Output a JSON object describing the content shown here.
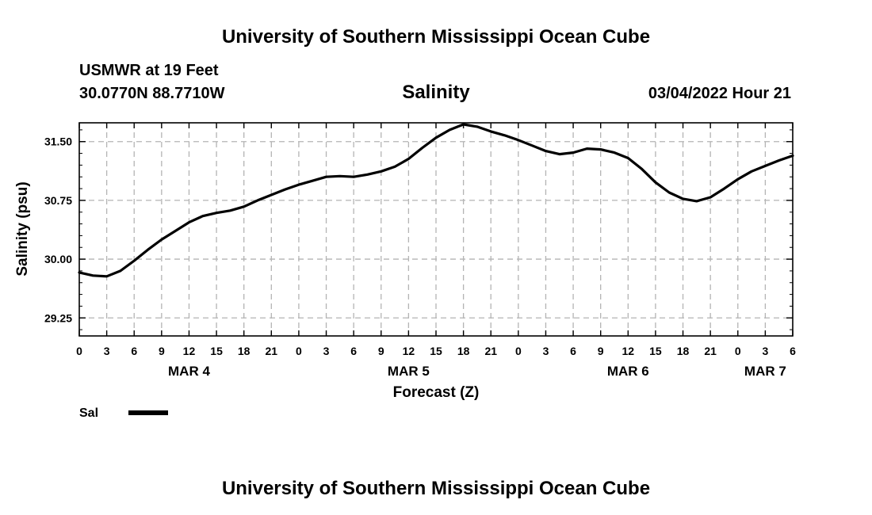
{
  "header": {
    "title_top": "University of Southern Mississippi Ocean Cube",
    "station": "USMWR at 19 Feet",
    "coords": "30.0770N  88.7710W",
    "datetime": "03/04/2022 Hour 21",
    "title_bottom": "University of Southern Mississippi Ocean Cube"
  },
  "colors": {
    "line": "#000000",
    "grid": "#b4b4b4",
    "background": "#ffffff"
  },
  "chart_data": {
    "type": "line",
    "title": "Salinity",
    "xlabel": "Forecast (Z)",
    "ylabel": "Salinity (psu)",
    "x_unit": "hours since 0Z MAR 4",
    "xlim": [
      0,
      78
    ],
    "ylim": [
      29.02,
      31.74
    ],
    "grid": true,
    "x_ticks": [
      0,
      3,
      6,
      9,
      12,
      15,
      18,
      21,
      24,
      27,
      30,
      33,
      36,
      39,
      42,
      45,
      48,
      51,
      54,
      57,
      60,
      63,
      66,
      69,
      72,
      75,
      78
    ],
    "x_tick_labels": [
      "0",
      "3",
      "6",
      "9",
      "12",
      "15",
      "18",
      "21",
      "0",
      "3",
      "6",
      "9",
      "12",
      "15",
      "18",
      "21",
      "0",
      "3",
      "6",
      "9",
      "12",
      "15",
      "18",
      "21",
      "0",
      "3",
      "6"
    ],
    "day_labels": [
      {
        "x": 12,
        "label": "MAR 4"
      },
      {
        "x": 36,
        "label": "MAR 5"
      },
      {
        "x": 60,
        "label": "MAR 6"
      },
      {
        "x": 75,
        "label": "MAR 7"
      }
    ],
    "y_ticks": [
      29.25,
      30.0,
      30.75,
      31.5
    ],
    "y_tick_labels": [
      "29.25",
      "30.00",
      "30.75",
      "31.50"
    ],
    "y_minor_step": 0.15,
    "legend": {
      "position": "bottom-left",
      "label": "Sal"
    },
    "series": [
      {
        "name": "Sal",
        "x": [
          0,
          1.5,
          3,
          4.5,
          6,
          7.5,
          9,
          10.5,
          12,
          13.5,
          15,
          16.5,
          18,
          19.5,
          21,
          22.5,
          24,
          25.5,
          27,
          28.5,
          30,
          31.5,
          33,
          34.5,
          36,
          37.5,
          39,
          40.5,
          42,
          43.5,
          45,
          46.5,
          48,
          49.5,
          51,
          52.5,
          54,
          55.5,
          57,
          58.5,
          60,
          61.5,
          63,
          64.5,
          66,
          67.5,
          69,
          70.5,
          72,
          73.5,
          75,
          76.5,
          78
        ],
        "values": [
          29.83,
          29.79,
          29.78,
          29.85,
          29.98,
          30.12,
          30.25,
          30.36,
          30.47,
          30.55,
          30.59,
          30.62,
          30.67,
          30.75,
          30.82,
          30.89,
          30.95,
          31.0,
          31.05,
          31.06,
          31.05,
          31.08,
          31.12,
          31.18,
          31.28,
          31.42,
          31.55,
          31.65,
          31.72,
          31.69,
          31.63,
          31.58,
          31.52,
          31.45,
          31.38,
          31.34,
          31.36,
          31.41,
          31.4,
          31.36,
          31.29,
          31.15,
          30.98,
          30.85,
          30.77,
          30.74,
          30.79,
          30.9,
          31.02,
          31.12,
          31.19,
          31.26,
          31.32
        ]
      }
    ]
  }
}
